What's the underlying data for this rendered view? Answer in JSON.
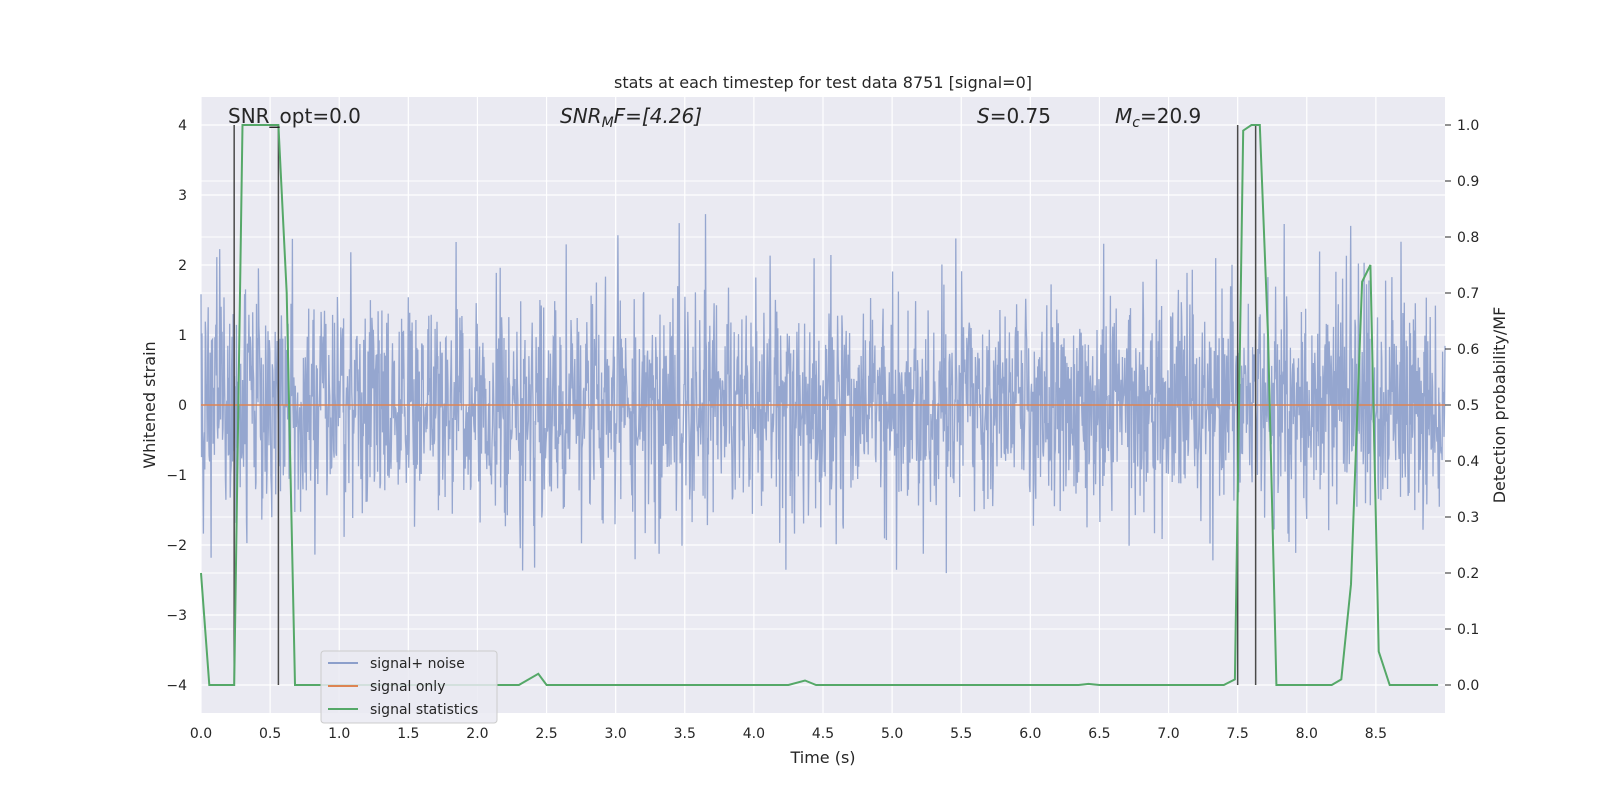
{
  "chart_data": {
    "type": "line",
    "title": "stats at each timestep for test data 8751 [signal=0]",
    "xlabel": "Time (s)",
    "ylabel_left": "Whitened strain",
    "ylabel_right": "Detection probability/MF",
    "xlim": [
      0.0,
      9.0
    ],
    "ylim_left": [
      -4.4,
      4.4
    ],
    "ylim_right": [
      -0.05,
      1.05
    ],
    "grid": true,
    "x_ticks": [
      "0.0",
      "0.5",
      "1.0",
      "1.5",
      "2.0",
      "2.5",
      "3.0",
      "3.5",
      "4.0",
      "4.5",
      "5.0",
      "5.5",
      "6.0",
      "6.5",
      "7.0",
      "7.5",
      "8.0",
      "8.5"
    ],
    "y_ticks_left": [
      "−4",
      "−3",
      "−2",
      "−1",
      "0",
      "1",
      "2",
      "3",
      "4"
    ],
    "y_ticks_right": [
      "0.0",
      "0.1",
      "0.2",
      "0.3",
      "0.4",
      "0.5",
      "0.6",
      "0.7",
      "0.8",
      "0.9",
      "1.0"
    ],
    "annotations": {
      "snr_opt": "SNR_opt=0.0",
      "snr_mf_main": "SNR",
      "snr_mf_sub": "M",
      "snr_mf_rest": "F=[4.26]",
      "s_main": "S",
      "s_rest": "=0.75",
      "mc_main": "M",
      "mc_sub": "c",
      "mc_rest": "=20.9"
    },
    "legend": {
      "position": "lower-left",
      "entries": [
        "signal+ noise",
        "signal only",
        "signal statistics"
      ]
    },
    "colors": {
      "noise": "#8c9fcb",
      "signal": "#dd8452",
      "statistics": "#55a868",
      "marker": "#4a4a4a",
      "background": "#eaeaf2",
      "grid": "#ffffff"
    },
    "series": [
      {
        "name": "signal+ noise",
        "axis": "left",
        "description_type": "noise",
        "std": 0.8,
        "x_range": [
          0.0,
          9.0
        ]
      },
      {
        "name": "signal only",
        "axis": "left",
        "x": [
          0.0,
          9.0
        ],
        "y": [
          0.0,
          0.0
        ]
      },
      {
        "name": "signal statistics",
        "axis": "right",
        "x": [
          0.0,
          0.06,
          0.12,
          0.18,
          0.24,
          0.3,
          0.36,
          0.42,
          0.48,
          0.56,
          0.62,
          0.68,
          0.74,
          1.0,
          2.3,
          2.44,
          2.5,
          4.25,
          4.37,
          4.45,
          6.35,
          6.42,
          6.5,
          7.4,
          7.48,
          7.54,
          7.6,
          7.66,
          7.72,
          7.78,
          8.1,
          8.18,
          8.25,
          8.32,
          8.4,
          8.46,
          8.52,
          8.6,
          8.95
        ],
        "y": [
          0.2,
          0.0,
          0.0,
          0.0,
          0.0,
          1.0,
          1.0,
          1.0,
          1.0,
          1.0,
          0.7,
          0.0,
          0.0,
          0.0,
          0.0,
          0.02,
          0.0,
          0.0,
          0.008,
          0.0,
          0.0,
          0.002,
          0.0,
          0.0,
          0.01,
          0.99,
          1.0,
          1.0,
          0.62,
          0.0,
          0.0,
          0.0,
          0.01,
          0.18,
          0.72,
          0.75,
          0.06,
          0.0,
          0.0
        ]
      }
    ],
    "marker_lines": [
      0.24,
      0.56,
      7.5,
      7.63
    ]
  }
}
